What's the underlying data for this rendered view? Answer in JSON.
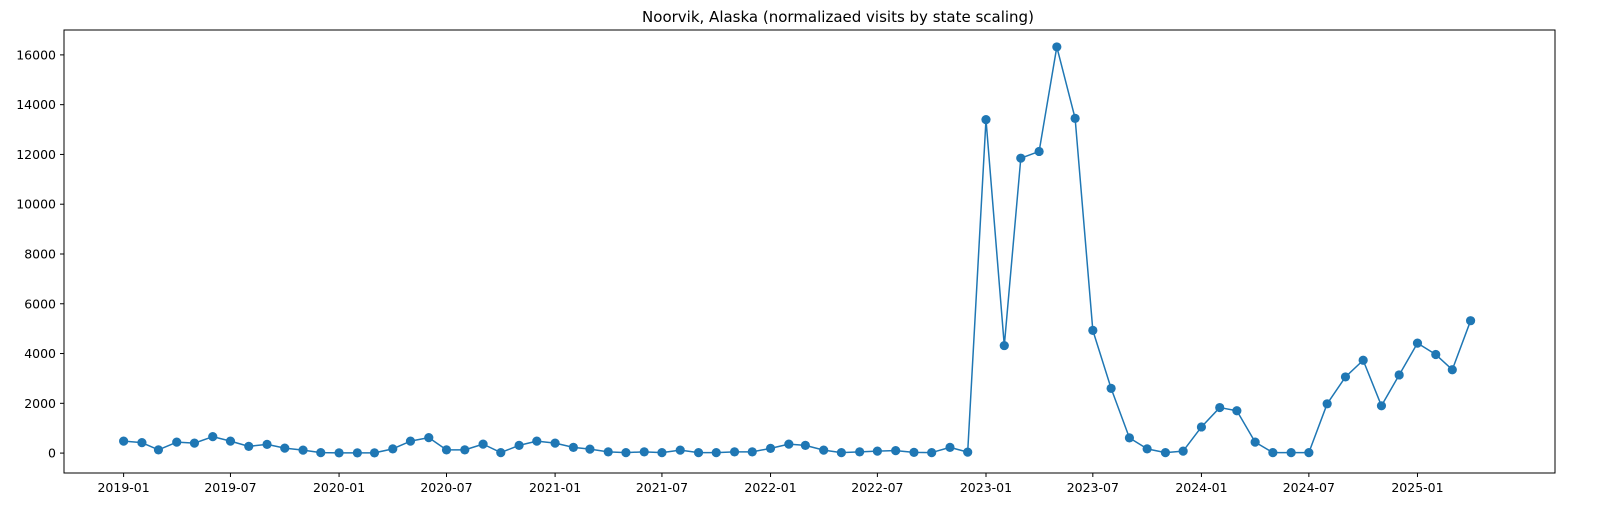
{
  "chart_data": {
    "type": "line",
    "title": "Noorvik, Alaska (normalizaed visits by state scaling)",
    "xlabel": "",
    "ylabel": "",
    "ylim": [
      -800,
      17000
    ],
    "xlim": [
      "2018-09-22",
      "2025-08-22"
    ],
    "grid": false,
    "legend": "none",
    "series_color": "#1f77b4",
    "x_ticks": [
      "2019-01",
      "2019-07",
      "2020-01",
      "2020-07",
      "2021-01",
      "2021-07",
      "2022-01",
      "2022-07",
      "2023-01",
      "2023-07",
      "2024-01",
      "2024-07",
      "2025-01"
    ],
    "y_ticks": [
      0,
      2000,
      4000,
      6000,
      8000,
      10000,
      12000,
      14000,
      16000
    ],
    "series": [
      {
        "x": [
          "2019-01",
          "2019-02",
          "2019-03",
          "2019-04",
          "2019-05",
          "2019-06",
          "2019-07",
          "2019-08",
          "2019-09",
          "2019-10",
          "2019-11",
          "2019-12",
          "2020-01",
          "2020-02",
          "2020-03",
          "2020-04",
          "2020-05",
          "2020-06",
          "2020-07",
          "2020-08",
          "2020-09",
          "2020-10",
          "2020-11",
          "2020-12",
          "2021-01",
          "2021-02",
          "2021-03",
          "2021-04",
          "2021-05",
          "2021-06",
          "2021-07",
          "2021-08",
          "2021-09",
          "2021-10",
          "2021-11",
          "2021-12",
          "2022-01",
          "2022-02",
          "2022-03",
          "2022-04",
          "2022-05",
          "2022-06",
          "2022-07",
          "2022-08",
          "2022-09",
          "2022-10",
          "2022-11",
          "2022-12",
          "2023-01",
          "2023-02",
          "2023-03",
          "2023-04",
          "2023-05",
          "2023-06",
          "2023-07",
          "2023-08",
          "2023-09",
          "2023-10",
          "2023-11",
          "2023-12",
          "2024-01",
          "2024-02",
          "2024-03",
          "2024-04",
          "2024-05",
          "2024-06",
          "2024-07",
          "2024-08",
          "2024-09",
          "2024-10",
          "2024-11",
          "2024-12",
          "2025-01",
          "2025-02",
          "2025-03",
          "2025-04"
        ],
        "values": [
          480,
          420,
          130,
          440,
          400,
          660,
          480,
          270,
          350,
          200,
          120,
          20,
          10,
          10,
          10,
          170,
          480,
          620,
          130,
          130,
          360,
          20,
          310,
          480,
          400,
          230,
          160,
          50,
          20,
          50,
          20,
          120,
          20,
          20,
          50,
          50,
          190,
          360,
          310,
          120,
          20,
          50,
          80,
          100,
          30,
          20,
          230,
          40,
          13400,
          4320,
          11850,
          12120,
          16320,
          13450,
          4930,
          2600,
          610,
          170,
          20,
          80,
          1050,
          1830,
          1700,
          440,
          20,
          20,
          20,
          1980,
          3060,
          3730,
          1900,
          3140,
          4420,
          3960,
          3350,
          5320
        ]
      }
    ]
  }
}
